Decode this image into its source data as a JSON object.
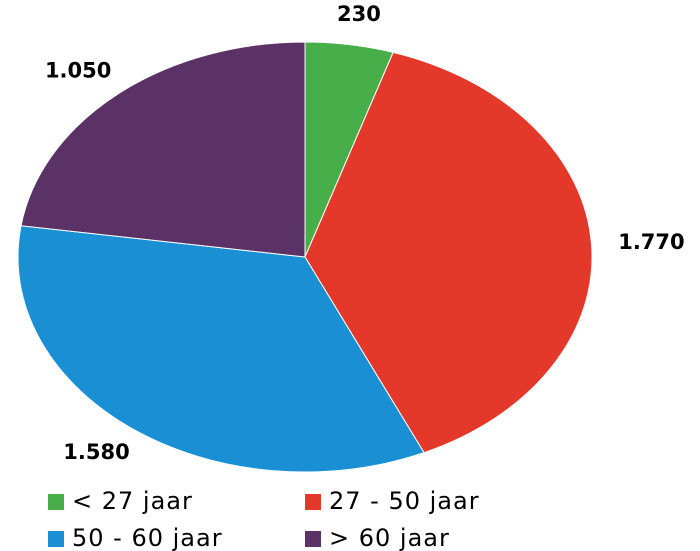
{
  "chart_data": {
    "type": "pie",
    "categories": [
      "< 27 jaar",
      "27 - 50 jaar",
      "50 - 60 jaar",
      "> 60 jaar"
    ],
    "values": [
      230,
      1770,
      1580,
      1050
    ],
    "value_labels": [
      "230",
      "1.770",
      "1.580",
      "1.050"
    ],
    "colors": [
      "#48ae4a",
      "#e3382a",
      "#1a8fd3",
      "#5b3265"
    ],
    "legend": "bottom"
  }
}
